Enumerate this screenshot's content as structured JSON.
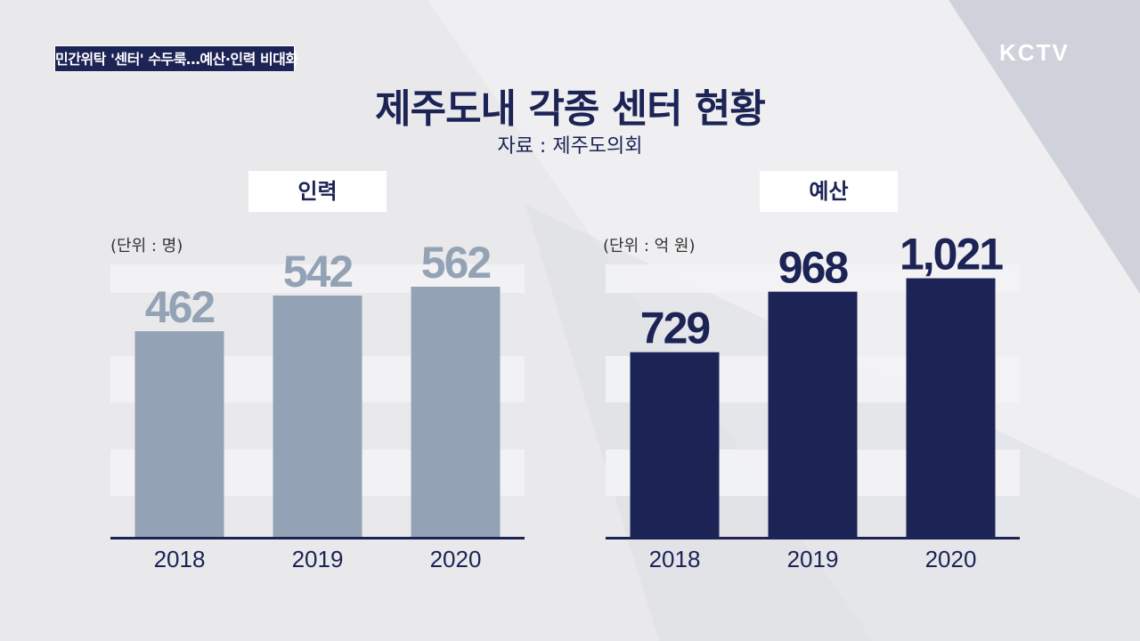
{
  "header": {
    "news_caption": "민간위탁 '센터' 수두룩…예산·인력 비대화",
    "logo": "KCTV",
    "title": "제주도내 각종 센터 현황",
    "source": "자료 : 제주도의회"
  },
  "colors": {
    "navy": "#1c2355",
    "gray_blue": "#93a3b5",
    "background": "#e9e9ec"
  },
  "chart_data": [
    {
      "type": "bar",
      "title": "인력",
      "unit": "(단위 : 명)",
      "categories": [
        "2018",
        "2019",
        "2020"
      ],
      "values": [
        462,
        542,
        562
      ],
      "value_labels": [
        "462",
        "542",
        "562"
      ],
      "bar_color": "#93a3b5",
      "label_color": "#93a3b5",
      "ylim": [
        0,
        660
      ]
    },
    {
      "type": "bar",
      "title": "예산",
      "unit": "(단위 : 억 원)",
      "categories": [
        "2018",
        "2019",
        "2020"
      ],
      "values": [
        729,
        968,
        1021
      ],
      "value_labels": [
        "729",
        "968",
        "1,021"
      ],
      "bar_color": "#1c2355",
      "label_color": "#1c2355",
      "ylim": [
        0,
        1160
      ]
    }
  ]
}
